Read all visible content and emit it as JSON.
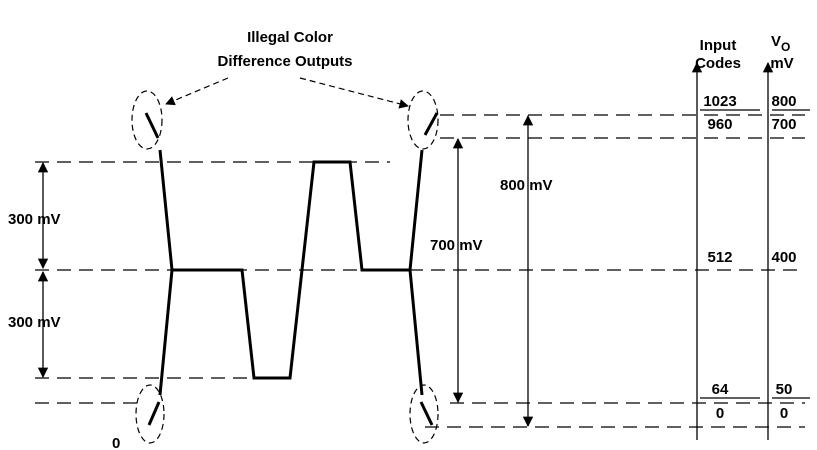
{
  "annotation": {
    "line1": "Illegal Color",
    "line2": "Difference Outputs"
  },
  "left_dims": [
    "300 mV",
    "300 mV"
  ],
  "dim_700": "700 mV",
  "dim_800": "800 mV",
  "zero_label": "0",
  "columns": {
    "codes_header": [
      "Input",
      "Codes"
    ],
    "vo_header": {
      "v": "V",
      "sub": "O",
      "unit": "mV"
    }
  },
  "rows": [
    {
      "code": 1023,
      "mv": 800
    },
    {
      "code": 960,
      "mv": 700
    },
    {
      "code": 512,
      "mv": 400
    },
    {
      "code": 64,
      "mv": 50
    },
    {
      "code": 0,
      "mv": 0
    }
  ]
}
